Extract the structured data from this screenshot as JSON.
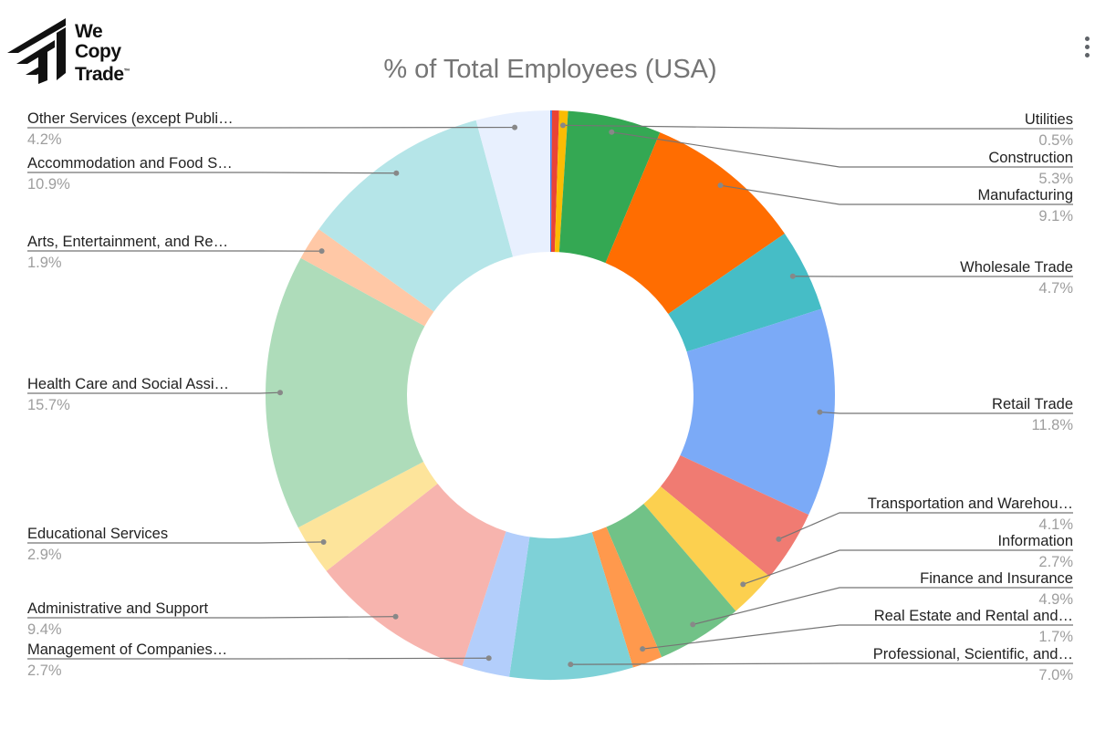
{
  "brand": {
    "logo_text": [
      "We",
      "Copy",
      "Trade"
    ],
    "trademark": "™"
  },
  "chart_data": {
    "type": "pie",
    "donut": true,
    "title": "% of Total Employees (USA)",
    "unit": "%",
    "start_angle": "top, clockwise",
    "legend": "labels with leader lines",
    "slices": [
      {
        "label": "",
        "value": 0.1,
        "color": "#4285f4"
      },
      {
        "label": "",
        "value": 0.4,
        "color": "#ea4335"
      },
      {
        "label": "Utilities",
        "value": 0.5,
        "display": "0.5%",
        "color": "#fbbc04",
        "side": "right"
      },
      {
        "label": "Construction",
        "value": 5.3,
        "display": "5.3%",
        "color": "#34a853",
        "side": "right"
      },
      {
        "label": "Manufacturing",
        "value": 9.1,
        "display": "9.1%",
        "color": "#ff6d01",
        "side": "right"
      },
      {
        "label": "Wholesale Trade",
        "value": 4.7,
        "display": "4.7%",
        "color": "#46bdc6",
        "side": "right"
      },
      {
        "label": "Retail Trade",
        "value": 11.8,
        "display": "11.8%",
        "color": "#7baaf7",
        "side": "right"
      },
      {
        "label": "Transportation and Warehou…",
        "value": 4.1,
        "display": "4.1%",
        "color": "#f07b72",
        "side": "right"
      },
      {
        "label": "Information",
        "value": 2.7,
        "display": "2.7%",
        "color": "#fcd04f",
        "side": "right"
      },
      {
        "label": "Finance and Insurance",
        "value": 4.9,
        "display": "4.9%",
        "color": "#71c287",
        "side": "right"
      },
      {
        "label": "Real Estate and Rental and…",
        "value": 1.7,
        "display": "1.7%",
        "color": "#ff994d",
        "side": "right"
      },
      {
        "label": "Professional, Scientific, and…",
        "value": 7.0,
        "display": "7.0%",
        "color": "#7ed1d7",
        "side": "right"
      },
      {
        "label": "Management of Companies…",
        "value": 2.7,
        "display": "2.7%",
        "color": "#b3cefb",
        "side": "left"
      },
      {
        "label": "Administrative and Support",
        "value": 9.4,
        "display": "9.4%",
        "color": "#f7b4ae",
        "side": "left"
      },
      {
        "label": "Educational Services",
        "value": 2.9,
        "display": "2.9%",
        "color": "#fde49b",
        "side": "left"
      },
      {
        "label": "Health Care and Social Assi…",
        "value": 15.7,
        "display": "15.7%",
        "color": "#aedcba",
        "side": "left"
      },
      {
        "label": "Arts, Entertainment, and Re…",
        "value": 1.9,
        "display": "1.9%",
        "color": "#ffc8a6",
        "side": "left"
      },
      {
        "label": "Accommodation and Food S…",
        "value": 10.9,
        "display": "10.9%",
        "color": "#b5e5e8",
        "side": "left"
      },
      {
        "label": "Other Services (except Publi…",
        "value": 4.2,
        "display": "4.2%",
        "color": "#e8f0fe",
        "side": "left"
      }
    ]
  }
}
